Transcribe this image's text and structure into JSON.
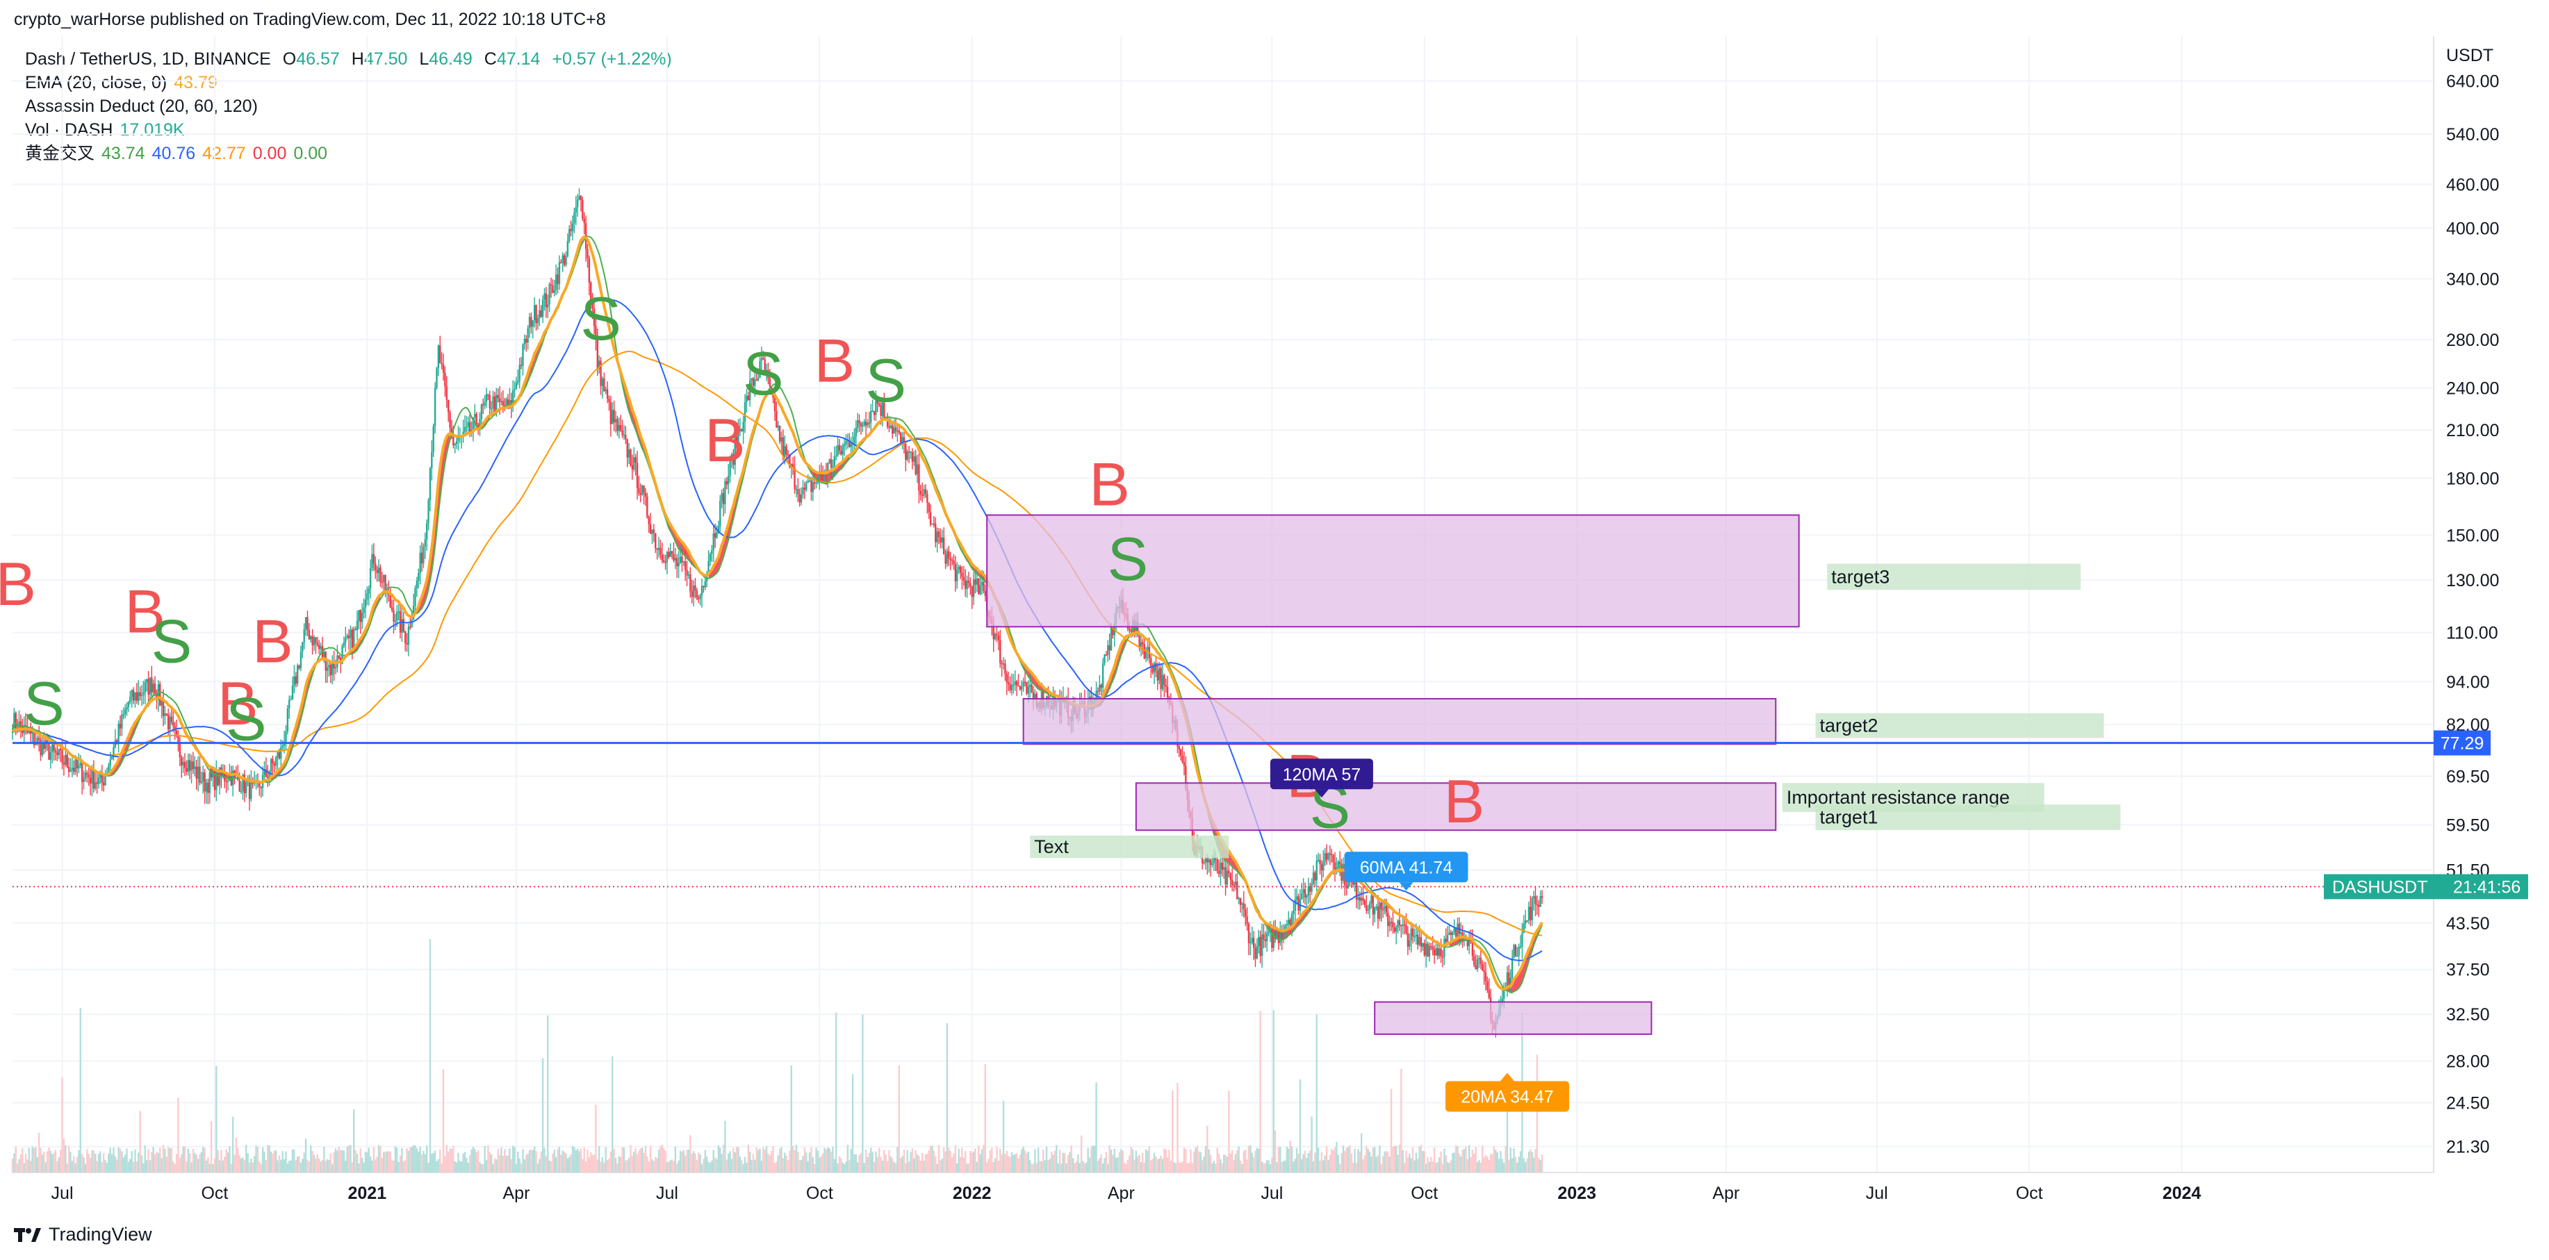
{
  "header": {
    "published_by": "crypto_warHorse published on TradingView.com, Dec 11, 2022 10:18 UTC+8"
  },
  "legend": {
    "symbol": "Dash / TetherUS, 1D, BINANCE",
    "ohlc": {
      "o_label": "O",
      "o": "46.57",
      "h_label": "H",
      "h": "47.50",
      "l_label": "L",
      "l": "46.49",
      "c_label": "C",
      "c": "47.14",
      "change": "+0.57 (+1.22%)"
    },
    "ema": {
      "label": "EMA (20, close, 0)",
      "value": "43.79"
    },
    "assassin": {
      "label": "Assassin Deduct (20, 60, 120)"
    },
    "vol": {
      "label": "Vol · DASH",
      "value": "17.019K"
    },
    "golden": {
      "label": "黄金交叉",
      "v1": "43.74",
      "v2": "40.76",
      "v3": "42.77",
      "v4": "0.00",
      "v5": "0.00"
    }
  },
  "colors": {
    "up": "#22ab94",
    "down": "#f23645",
    "ema20": "#f9a825",
    "ma60": "#2962ff",
    "ma120": "#ff9800",
    "zone_fill": "#e1bee7",
    "zone_stroke": "#9c27b0",
    "target_fill": "#c8e6c9",
    "hline": "#2962ff",
    "buy": "#f05454",
    "sell": "#43a047"
  },
  "chart_data": {
    "type": "candlestick",
    "symbol": "DASHUSDT",
    "y_scale": "log",
    "ylim": [
      20.5,
      700
    ],
    "y_unit": "USDT",
    "y_ticks": [
      "640.00",
      "540.00",
      "460.00",
      "400.00",
      "340.00",
      "280.00",
      "240.00",
      "210.00",
      "180.00",
      "150.00",
      "130.00",
      "110.00",
      "94.00",
      "82.00",
      "69.50",
      "59.50",
      "51.50",
      "43.50",
      "37.50",
      "32.50",
      "28.00",
      "24.50",
      "21.30"
    ],
    "x_ticks": [
      "Jul",
      "Oct",
      "2021",
      "Apr",
      "Jul",
      "Oct",
      "2022",
      "Apr",
      "Jul",
      "Oct",
      "2023",
      "Apr",
      "Jul",
      "Oct",
      "2024"
    ],
    "close_path": [
      [
        "2020-06-01",
        83
      ],
      [
        "2020-06-20",
        76
      ],
      [
        "2020-07-10",
        71
      ],
      [
        "2020-07-25",
        68
      ],
      [
        "2020-08-10",
        88
      ],
      [
        "2020-08-25",
        94
      ],
      [
        "2020-09-10",
        75
      ],
      [
        "2020-09-25",
        68
      ],
      [
        "2020-10-10",
        70
      ],
      [
        "2020-10-25",
        66
      ],
      [
        "2020-11-10",
        75
      ],
      [
        "2020-11-25",
        112
      ],
      [
        "2020-12-10",
        98
      ],
      [
        "2020-12-25",
        110
      ],
      [
        "2021-01-05",
        140
      ],
      [
        "2021-01-15",
        120
      ],
      [
        "2021-01-25",
        108
      ],
      [
        "2021-02-05",
        150
      ],
      [
        "2021-02-13",
        270
      ],
      [
        "2021-02-22",
        200
      ],
      [
        "2021-03-05",
        210
      ],
      [
        "2021-03-15",
        230
      ],
      [
        "2021-03-28",
        225
      ],
      [
        "2021-04-10",
        300
      ],
      [
        "2021-04-20",
        320
      ],
      [
        "2021-05-01",
        370
      ],
      [
        "2021-05-10",
        450
      ],
      [
        "2021-05-20",
        260
      ],
      [
        "2021-05-28",
        220
      ],
      [
        "2021-06-10",
        190
      ],
      [
        "2021-06-25",
        145
      ],
      [
        "2021-07-10",
        135
      ],
      [
        "2021-07-20",
        122
      ],
      [
        "2021-08-05",
        175
      ],
      [
        "2021-08-20",
        240
      ],
      [
        "2021-08-28",
        260
      ],
      [
        "2021-09-08",
        200
      ],
      [
        "2021-09-20",
        170
      ],
      [
        "2021-10-05",
        185
      ],
      [
        "2021-10-20",
        205
      ],
      [
        "2021-11-05",
        230
      ],
      [
        "2021-11-15",
        210
      ],
      [
        "2021-11-28",
        185
      ],
      [
        "2021-12-10",
        150
      ],
      [
        "2021-12-25",
        130
      ],
      [
        "2022-01-08",
        125
      ],
      [
        "2022-01-22",
        95
      ],
      [
        "2022-02-05",
        90
      ],
      [
        "2022-02-20",
        88
      ],
      [
        "2022-03-05",
        85
      ],
      [
        "2022-03-18",
        90
      ],
      [
        "2022-03-30",
        120
      ],
      [
        "2022-04-10",
        110
      ],
      [
        "2022-04-25",
        95
      ],
      [
        "2022-05-08",
        75
      ],
      [
        "2022-05-15",
        55
      ],
      [
        "2022-05-28",
        52
      ],
      [
        "2022-06-10",
        48
      ],
      [
        "2022-06-20",
        40
      ],
      [
        "2022-07-05",
        42
      ],
      [
        "2022-07-20",
        48
      ],
      [
        "2022-08-05",
        55
      ],
      [
        "2022-08-15",
        50
      ],
      [
        "2022-08-30",
        46
      ],
      [
        "2022-09-10",
        44
      ],
      [
        "2022-09-25",
        41
      ],
      [
        "2022-10-10",
        40
      ],
      [
        "2022-10-25",
        43
      ],
      [
        "2022-11-08",
        35
      ],
      [
        "2022-11-12",
        31
      ],
      [
        "2022-11-25",
        40
      ],
      [
        "2022-12-05",
        46
      ],
      [
        "2022-12-11",
        47.14
      ]
    ],
    "indicators": [
      {
        "name": "EMA (20, close, 0)",
        "value": 43.79
      },
      {
        "name": "60MA",
        "value": 41.74
      },
      {
        "name": "120MA",
        "value": 57
      }
    ],
    "annotations": {
      "buy_label": "B",
      "sell_label": "S",
      "signals": [
        [
          "B",
          "2020-06-03",
          120
        ],
        [
          "S",
          "2020-06-20",
          82
        ],
        [
          "B",
          "2020-08-20",
          110
        ],
        [
          "S",
          "2020-09-05",
          100
        ],
        [
          "B",
          "2020-10-15",
          82
        ],
        [
          "S",
          "2020-10-20",
          78
        ],
        [
          "B",
          "2020-11-05",
          100
        ],
        [
          "S",
          "2021-05-22",
          280
        ],
        [
          "B",
          "2021-08-05",
          190
        ],
        [
          "S",
          "2021-08-28",
          235
        ],
        [
          "B",
          "2021-10-10",
          245
        ],
        [
          "S",
          "2021-11-10",
          230
        ],
        [
          "B",
          "2022-03-25",
          165
        ],
        [
          "S",
          "2022-04-05",
          130
        ],
        [
          "B",
          "2022-07-22",
          65
        ],
        [
          "S",
          "2022-08-05",
          59
        ],
        [
          "B",
          "2022-10-25",
          60
        ]
      ],
      "zones": [
        [
          "2022-01-10",
          "2023-05-15",
          112,
          160
        ],
        [
          "2022-02-01",
          "2023-05-01",
          77,
          89
        ],
        [
          "2022-04-10",
          "2023-05-01",
          58.5,
          68
        ],
        [
          "2022-09-01",
          "2023-02-15",
          30.5,
          33.8
        ]
      ],
      "targets": [
        {
          "text": "target3",
          "from": "2023-06-01",
          "to": "2023-11-01",
          "y_low": 126,
          "y_high": 137
        },
        {
          "text": "target2",
          "from": "2023-05-25",
          "to": "2023-11-15",
          "y_low": 78.5,
          "y_high": 85
        },
        {
          "text": "Important resistance range",
          "from": "2023-05-05",
          "to": "2023-10-10",
          "y_low": 62,
          "y_high": 68
        },
        {
          "text": "target1",
          "from": "2023-05-25",
          "to": "2023-11-25",
          "y_low": 58.5,
          "y_high": 63.5
        },
        {
          "text": "Text",
          "from": "2022-02-05",
          "to": "2022-06-05",
          "y_low": 53.5,
          "y_high": 57.5
        }
      ],
      "hline": {
        "value": 77.29,
        "label": "77.29"
      },
      "last_price": {
        "label": "DASHUSDT",
        "time": "21:41:56",
        "value": 47.14
      },
      "tags": [
        {
          "text": "120MA 57",
          "date": "2022-07-31",
          "value": 70
        },
        {
          "text": "60MA 41.74",
          "date": "2022-09-20",
          "value": 52
        },
        {
          "text": "20MA 34.47",
          "date": "2022-11-20",
          "value": 25
        }
      ]
    }
  },
  "footer": {
    "brand": "TradingView"
  }
}
